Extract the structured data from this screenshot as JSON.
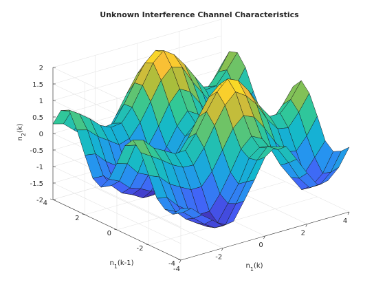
{
  "chart_data": {
    "type": "surface",
    "title": "Unknown Interference Channel Characteristics",
    "xlabel_base": "n",
    "xlabel_sub": "1",
    "xlabel_rest": "(k)",
    "ylabel_base": "n",
    "ylabel_sub": "1",
    "ylabel_rest": "(k-1)",
    "zlabel_base": "n",
    "zlabel_sub": "2",
    "zlabel_rest": "(k)",
    "xlim": [
      -4,
      4
    ],
    "ylim": [
      -4,
      4
    ],
    "zlim": [
      -2,
      2
    ],
    "xticks": [
      "-4",
      "-2",
      "0",
      "2",
      "4"
    ],
    "yticks": [
      "-4",
      "-2",
      "0",
      "2",
      "4"
    ],
    "zticks": [
      "-2",
      "-1.5",
      "-1",
      "-0.5",
      "0",
      "0.5",
      "1",
      "1.5",
      "2"
    ],
    "grid": true,
    "colormap": "parula",
    "grid_x": [
      -4.0,
      -3.5,
      -3.0,
      -2.5,
      -2.0,
      -1.5,
      -1.0,
      -0.5,
      0.0,
      0.5,
      1.0,
      1.5,
      2.0,
      2.5,
      3.0,
      3.5,
      4.0
    ],
    "grid_y": [
      -4.0,
      -3.5,
      -3.0,
      -2.5,
      -2.0,
      -1.5,
      -1.0,
      -0.5,
      0.0,
      0.5,
      1.0,
      1.5,
      2.0,
      2.5,
      3.0,
      3.5,
      4.0
    ],
    "z": [
      [
        -0.44,
        -0.52,
        -0.82,
        -1.06,
        -1.33,
        -1.28,
        -0.76,
        -0.21,
        0.39,
        0.61,
        0.53,
        0.05,
        -0.46,
        -0.91,
        -0.86,
        -0.56,
        -0.04
      ],
      [
        -0.73,
        -0.76,
        -1.03,
        -1.3,
        -1.5,
        -1.5,
        -0.95,
        -0.38,
        0.18,
        0.51,
        0.32,
        -0.17,
        -0.73,
        -1.11,
        -1.1,
        -0.82,
        -0.27
      ],
      [
        -0.69,
        -0.85,
        -1.17,
        -1.38,
        -1.58,
        -1.55,
        -1.06,
        -0.56,
        0.13,
        0.36,
        0.25,
        -0.36,
        -0.83,
        -1.28,
        -1.25,
        -0.97,
        -0.4
      ],
      [
        -0.47,
        -0.55,
        -0.88,
        -1.11,
        -1.33,
        -1.32,
        -0.88,
        -0.32,
        0.29,
        0.59,
        0.42,
        -0.06,
        -0.59,
        -0.99,
        -1.0,
        -0.6,
        -0.19
      ],
      [
        0.1,
        -0.03,
        -0.34,
        -0.52,
        -0.69,
        -0.69,
        -0.32,
        0.24,
        0.8,
        1.1,
        0.96,
        0.53,
        0.02,
        -0.37,
        -0.43,
        -0.06,
        0.44
      ],
      [
        0.68,
        0.48,
        0.27,
        0.04,
        -0.13,
        -0.15,
        0.28,
        0.86,
        1.39,
        1.7,
        1.49,
        1.14,
        0.6,
        0.22,
        0.16,
        0.54,
        1.02
      ],
      [
        0.95,
        0.85,
        0.52,
        0.35,
        0.17,
        0.18,
        0.6,
        1.17,
        1.68,
        1.98,
        1.84,
        1.44,
        0.9,
        0.48,
        0.48,
        0.81,
        1.29
      ],
      [
        0.66,
        0.59,
        0.26,
        0.11,
        -0.12,
        -0.09,
        0.35,
        0.9,
        1.41,
        1.7,
        1.49,
        1.1,
        0.62,
        0.23,
        0.17,
        0.54,
        1.0
      ],
      [
        0.01,
        -0.09,
        -0.46,
        -0.61,
        -0.78,
        -0.77,
        -0.25,
        0.22,
        0.79,
        1.08,
        0.89,
        0.54,
        -0.03,
        -0.47,
        -0.52,
        -0.06,
        0.37
      ],
      [
        -0.58,
        -0.73,
        -1.03,
        -1.14,
        -1.31,
        -1.37,
        -0.89,
        -0.3,
        0.14,
        0.47,
        0.33,
        -0.15,
        -0.59,
        -1.01,
        -1.05,
        -0.67,
        -0.25
      ],
      [
        -0.94,
        -0.98,
        -1.3,
        -1.44,
        -1.63,
        -1.63,
        -1.2,
        -0.63,
        -0.13,
        0.18,
        0.04,
        -0.44,
        -0.94,
        -1.33,
        -1.42,
        -0.99,
        -0.58
      ],
      [
        -0.79,
        -0.8,
        -1.09,
        -1.26,
        -1.48,
        -1.43,
        -0.96,
        -0.47,
        0.07,
        0.44,
        0.24,
        -0.17,
        -0.74,
        -1.1,
        -1.19,
        -0.74,
        -0.26
      ],
      [
        -0.2,
        -0.25,
        -0.57,
        -0.79,
        -0.96,
        -0.92,
        -0.47,
        0.04,
        0.63,
        0.99,
        0.81,
        0.35,
        -0.17,
        -0.61,
        -0.56,
        -0.19,
        0.28
      ],
      [
        0.45,
        0.36,
        0.07,
        -0.14,
        -0.36,
        -0.26,
        0.13,
        0.67,
        1.23,
        1.54,
        1.44,
        0.9,
        0.45,
        0.0,
        0.04,
        0.37,
        0.89
      ],
      [
        0.94,
        0.73,
        0.49,
        0.2,
        0.05,
        0.09,
        0.48,
        1.05,
        1.64,
        1.92,
        1.7,
        1.31,
        0.84,
        0.37,
        0.4,
        0.79,
        1.22
      ],
      [
        0.81,
        0.7,
        0.38,
        0.2,
        -0.07,
        -0.03,
        0.46,
        1.01,
        1.53,
        1.81,
        1.63,
        1.23,
        0.76,
        0.33,
        0.26,
        0.62,
        1.14
      ],
      [
        0.29,
        0.2,
        -0.08,
        -0.34,
        -0.49,
        -0.48,
        0.01,
        0.56,
        1.07,
        1.32,
        1.18,
        0.77,
        0.24,
        -0.18,
        -0.24,
        0.14,
        0.62
      ]
    ]
  }
}
